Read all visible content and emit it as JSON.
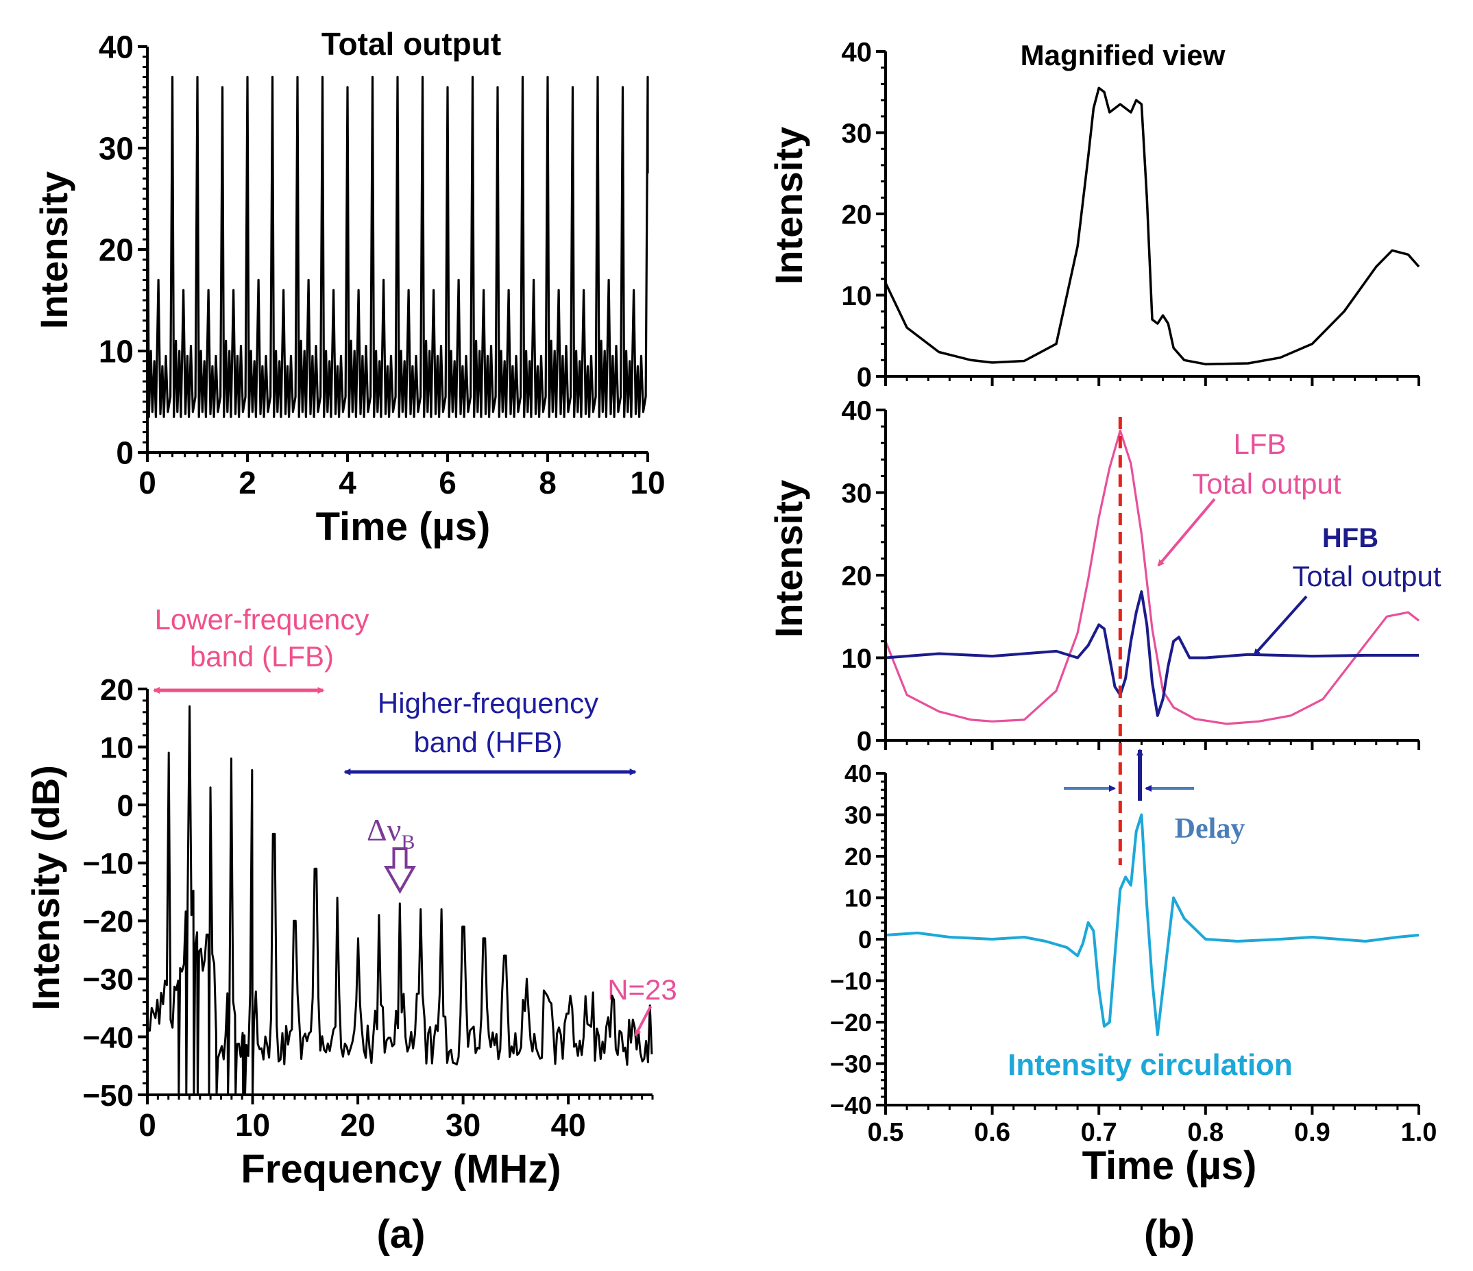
{
  "colors": {
    "axis": "#000000",
    "black_trace": "#000000",
    "lfb": "#e8509a",
    "hfb": "#1c1c8c",
    "circulation": "#1ca8d8",
    "delay_marker": "#e2231a",
    "delay_text": "#4a7eb8",
    "dnu_arrow": "#7b3a96",
    "lfb_band": "#f0508a",
    "hfb_band": "#1c1ca0",
    "n23": "#e8509a"
  },
  "panel_labels": {
    "a": "(a)",
    "b": "(b)"
  },
  "chart_data": [
    {
      "id": "total-output-time",
      "type": "line",
      "title": "Total output",
      "xlabel": "Time (µs)",
      "ylabel": "Intensity",
      "xlim": [
        0,
        10
      ],
      "ylim": [
        0,
        40
      ],
      "xticks": [
        "0",
        "2",
        "4",
        "6",
        "8",
        "10"
      ],
      "yticks": [
        "0",
        "10",
        "20",
        "30",
        "40"
      ],
      "grid": false,
      "pulse_period": 0.5,
      "baseline": 3.5,
      "tall_peaks": [
        37,
        37,
        36,
        37,
        37,
        37,
        37,
        36,
        37,
        37,
        37,
        36,
        37,
        36,
        37,
        37,
        36,
        37,
        36
      ],
      "mid_peaks": [
        17,
        16,
        16,
        16,
        17,
        16,
        17,
        16,
        16,
        17,
        16,
        16,
        17,
        16,
        16,
        17,
        16,
        16,
        17,
        16
      ],
      "small_peaks": [
        10,
        11,
        10,
        11,
        10,
        10,
        11,
        10,
        11,
        10
      ]
    },
    {
      "id": "spectrum",
      "type": "line",
      "title": "",
      "xlabel": "Frequency (MHz)",
      "ylabel": "Intensity (dB)",
      "xlim": [
        0,
        48
      ],
      "ylim": [
        -50,
        20
      ],
      "xticks": [
        "0",
        "10",
        "20",
        "30",
        "40"
      ],
      "yticks": [
        "−50",
        "−40",
        "−30",
        "−20",
        "−10",
        "0",
        "10",
        "20"
      ],
      "grid": false,
      "harmonic_spacing_mhz": 2.0,
      "harmonic_peaks_db": [
        9,
        17,
        3,
        8,
        6,
        -5,
        -20,
        -11,
        -16,
        -23,
        -19,
        -17,
        -18,
        -18,
        -21,
        -23,
        -26,
        -30,
        -33,
        -36,
        -38,
        -40,
        -41,
        -43
      ],
      "annotations": {
        "lfb_label_line1": "Lower-frequency",
        "lfb_label_line2": "band (LFB)",
        "lfb_range_mhz": [
          0,
          18
        ],
        "hfb_label_line1": "Higher-frequency",
        "hfb_label_line2": "band (HFB)",
        "hfb_range_mhz": [
          18,
          47
        ],
        "delta_nu_main": "Δν",
        "delta_nu_sub": "B",
        "delta_nu_at_mhz": 24,
        "n_label": "N=23",
        "n_at_mhz": 46
      }
    },
    {
      "id": "magnified-view",
      "type": "line",
      "title": "Magnified view",
      "xlabel": "",
      "ylabel": "Intensity",
      "xlim": [
        0.5,
        1.0
      ],
      "ylim": [
        0,
        40
      ],
      "yticks": [
        "0",
        "10",
        "20",
        "30",
        "40"
      ],
      "grid": false,
      "series": [
        {
          "x": [
            0.5,
            0.52,
            0.55,
            0.58,
            0.6,
            0.63,
            0.66,
            0.68,
            0.69,
            0.695,
            0.7,
            0.705,
            0.71,
            0.72,
            0.73,
            0.735,
            0.74,
            0.745,
            0.75,
            0.755,
            0.76,
            0.765,
            0.77,
            0.78,
            0.8,
            0.84,
            0.87,
            0.9,
            0.93,
            0.96,
            0.975,
            0.99,
            1.0
          ],
          "y": [
            11.5,
            6,
            3,
            2,
            1.7,
            1.9,
            4,
            16,
            27,
            33,
            35.5,
            35,
            32.5,
            33.5,
            32.5,
            34,
            33.5,
            22,
            7,
            6.5,
            7.5,
            6.5,
            3.5,
            2,
            1.5,
            1.6,
            2.3,
            4,
            8,
            13.5,
            15.5,
            15,
            13.5
          ]
        }
      ]
    },
    {
      "id": "lfb-hfb-outputs",
      "type": "line",
      "title": "",
      "xlabel": "",
      "ylabel": "Intensity",
      "xlim": [
        0.5,
        1.0
      ],
      "ylim": [
        0,
        40
      ],
      "yticks": [
        "0",
        "10",
        "20",
        "30",
        "40"
      ],
      "grid": false,
      "delay_line_x": 0.72,
      "series": [
        {
          "name": "LFB Total output",
          "x": [
            0.5,
            0.52,
            0.55,
            0.58,
            0.6,
            0.63,
            0.66,
            0.68,
            0.69,
            0.7,
            0.71,
            0.72,
            0.73,
            0.74,
            0.75,
            0.76,
            0.77,
            0.79,
            0.82,
            0.85,
            0.88,
            0.91,
            0.94,
            0.97,
            0.99,
            1.0
          ],
          "y": [
            12,
            5.5,
            3.5,
            2.5,
            2.3,
            2.5,
            6,
            13,
            19.5,
            27,
            33,
            37.5,
            33.5,
            25,
            13.5,
            6,
            4,
            2.6,
            2,
            2.3,
            3,
            5,
            10,
            15,
            15.5,
            14.5
          ]
        },
        {
          "name": "HFB Total output",
          "x": [
            0.5,
            0.55,
            0.6,
            0.63,
            0.66,
            0.68,
            0.69,
            0.7,
            0.705,
            0.71,
            0.715,
            0.72,
            0.725,
            0.73,
            0.735,
            0.74,
            0.745,
            0.75,
            0.755,
            0.76,
            0.765,
            0.77,
            0.775,
            0.785,
            0.8,
            0.84,
            0.9,
            0.95,
            1.0
          ],
          "y": [
            10,
            10.5,
            10.2,
            10.5,
            10.8,
            10,
            11.5,
            14,
            13.5,
            10,
            6.5,
            5.5,
            7.5,
            12,
            15.5,
            18,
            14,
            7,
            3,
            5,
            9,
            12,
            12.5,
            10,
            10,
            10.4,
            10.2,
            10.3,
            10.3
          ]
        }
      ],
      "annotations": {
        "lfb_label_line1": "LFB",
        "lfb_label_line2": "Total output",
        "hfb_label_line1": "HFB",
        "hfb_label_line2": "Total output"
      }
    },
    {
      "id": "intensity-circulation",
      "type": "line",
      "title": "",
      "xlabel": "Time (µs)",
      "ylabel": "",
      "xlim": [
        0.5,
        1.0
      ],
      "ylim": [
        -40,
        40
      ],
      "xticks": [
        "0.5",
        "0.6",
        "0.7",
        "0.8",
        "0.9",
        "1.0"
      ],
      "yticks": [
        "−40",
        "−30",
        "−20",
        "−10",
        "0",
        "10",
        "20",
        "30",
        "40"
      ],
      "grid": false,
      "series": [
        {
          "name": "Intensity circulation",
          "x": [
            0.5,
            0.53,
            0.56,
            0.6,
            0.63,
            0.65,
            0.67,
            0.68,
            0.685,
            0.69,
            0.695,
            0.7,
            0.705,
            0.71,
            0.715,
            0.72,
            0.725,
            0.73,
            0.735,
            0.74,
            0.745,
            0.75,
            0.755,
            0.76,
            0.77,
            0.78,
            0.8,
            0.83,
            0.87,
            0.9,
            0.95,
            0.98,
            1.0
          ],
          "y": [
            1,
            1.5,
            0.5,
            0,
            0.5,
            -0.5,
            -2,
            -4,
            -1,
            4,
            2,
            -12,
            -21,
            -20,
            -4,
            12,
            15,
            13,
            26,
            30,
            8,
            -10,
            -23,
            -12,
            10,
            5,
            0,
            -0.5,
            0,
            0.5,
            -0.5,
            0.5,
            1
          ]
        }
      ],
      "annotations": {
        "delay_label": "Delay",
        "circ_label": "Intensity circulation"
      }
    }
  ]
}
